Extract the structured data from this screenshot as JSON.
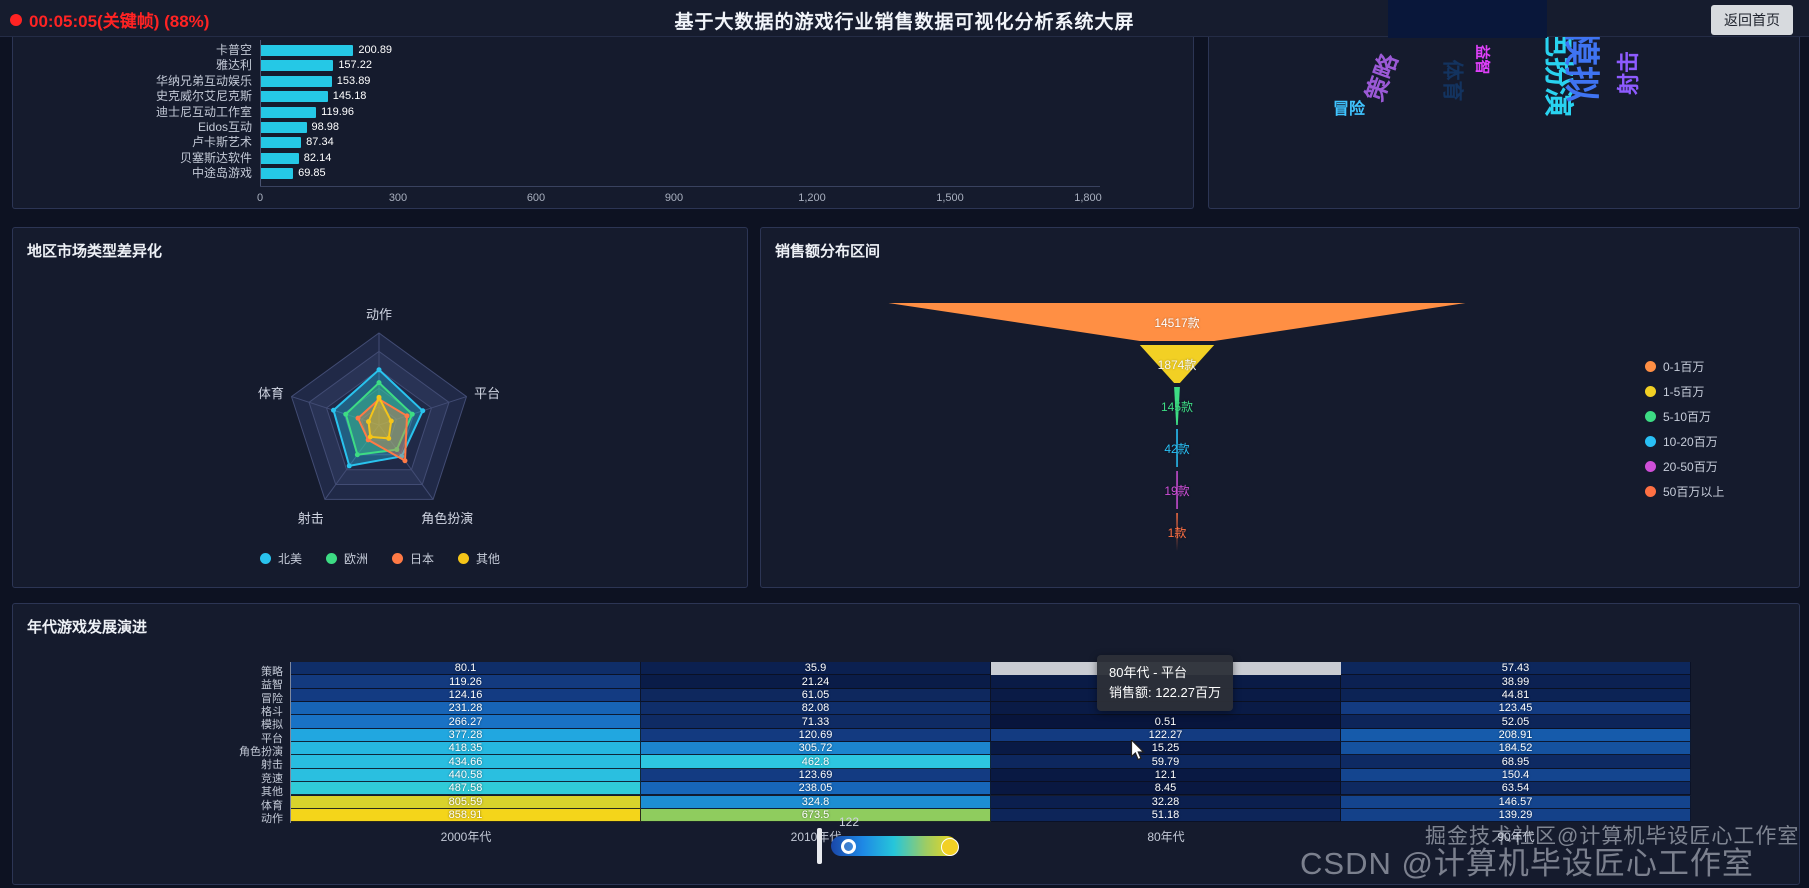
{
  "header": {
    "recording": "00:05:05(关键帧) (88%)",
    "title": "基于大数据的游戏行业销售数据可视化分析系统大屏",
    "home_button": "返回首页"
  },
  "chart_data": [
    {
      "type": "bar",
      "title": "",
      "orientation": "horizontal",
      "categories": [
        "卡普空",
        "雅达利",
        "华纳兄弟互动娱乐",
        "史克威尔艾尼克斯",
        "迪士尼互动工作室",
        "Eidos互动",
        "卢卡斯艺术",
        "贝塞斯达软件",
        "中途岛游戏"
      ],
      "values": [
        200.89,
        157.22,
        153.89,
        145.18,
        119.96,
        98.98,
        87.34,
        82.14,
        69.85
      ],
      "x_ticks": [
        "0",
        "300",
        "600",
        "900",
        "1,200",
        "1,500",
        "1,800"
      ],
      "x_max": 1800,
      "bar_color": "#25c8e6"
    },
    {
      "type": "wordcloud",
      "title": "",
      "words": [
        {
          "text": "策略",
          "color": "#9b59d6",
          "size": 24,
          "x": 150,
          "y": 30,
          "rotate": -70
        },
        {
          "text": "体育",
          "color": "#13335f",
          "size": 21,
          "x": 222,
          "y": 34,
          "rotate": 90
        },
        {
          "text": "益智",
          "color": "#e040fb",
          "size": 15,
          "x": 258,
          "y": 16,
          "rotate": 90
        },
        {
          "text": "角色扮演",
          "color": "#29d3f0",
          "size": 30,
          "x": 288,
          "y": 6,
          "rotate": 90
        },
        {
          "text": "模拟",
          "color": "#3f74f2",
          "size": 36,
          "x": 336,
          "y": 12,
          "rotate": 90
        },
        {
          "text": "射击",
          "color": "#8e5bff",
          "size": 22,
          "x": 398,
          "y": 26,
          "rotate": -90
        },
        {
          "text": "冒险",
          "color": "#40c4ff",
          "size": 16,
          "x": 124,
          "y": 66,
          "rotate": 0
        }
      ]
    },
    {
      "type": "radar",
      "title": "地区市场类型差异化",
      "indicators": [
        "动作",
        "平台",
        "角色扮演",
        "射击",
        "体育"
      ],
      "scale_max": 1,
      "series": [
        {
          "name": "北美",
          "color": "#29c3ee",
          "values": [
            0.6,
            0.5,
            0.42,
            0.55,
            0.52
          ]
        },
        {
          "name": "欧洲",
          "color": "#3ddc84",
          "values": [
            0.46,
            0.38,
            0.33,
            0.4,
            0.38
          ]
        },
        {
          "name": "日本",
          "color": "#ff7a45",
          "values": [
            0.28,
            0.32,
            0.48,
            0.2,
            0.24
          ]
        },
        {
          "name": "其他",
          "color": "#f5c518",
          "values": [
            0.3,
            0.14,
            0.18,
            0.16,
            0.12
          ]
        }
      ]
    },
    {
      "type": "funnel",
      "title": "销售额分布区间",
      "segments": [
        {
          "label": "14517款",
          "count": 14517,
          "color": "#ff8f44",
          "label_color": "#ffffff"
        },
        {
          "label": "1874款",
          "count": 1874,
          "color": "#f2d024",
          "label_color": "#f5f5f5"
        },
        {
          "label": "145款",
          "count": 145,
          "color": "#3ddc84",
          "label_color": "#3ddc84"
        },
        {
          "label": "42款",
          "count": 42,
          "color": "#29c0f5",
          "label_color": "#29c0f5"
        },
        {
          "label": "19款",
          "count": 19,
          "color": "#cf4fd8",
          "label_color": "#cf4fd8"
        },
        {
          "label": "1款",
          "count": 1,
          "color": "#ff7043",
          "label_color": "#ff7043"
        }
      ],
      "legend": [
        {
          "label": "0-1百万",
          "color": "#ff8f44"
        },
        {
          "label": "1-5百万",
          "color": "#f2d024"
        },
        {
          "label": "5-10百万",
          "color": "#3ddc84"
        },
        {
          "label": "10-20百万",
          "color": "#29c0f5"
        },
        {
          "label": "20-50百万",
          "color": "#cf4fd8"
        },
        {
          "label": "50百万以上",
          "color": "#ff7043"
        }
      ]
    },
    {
      "type": "heatmap",
      "title": "年代游戏发展演进",
      "rows": [
        "策略",
        "益智",
        "冒险",
        "格斗",
        "模拟",
        "平台",
        "角色扮演",
        "射击",
        "竞速",
        "其他",
        "体育",
        "动作"
      ],
      "columns": [
        "2000年代",
        "2010年代",
        "80年代",
        "90年代"
      ],
      "values": [
        [
          80.1,
          35.9,
          null,
          57.43
        ],
        [
          119.26,
          21.24,
          null,
          38.99
        ],
        [
          124.16,
          61.05,
          null,
          44.81
        ],
        [
          231.28,
          82.08,
          null,
          123.45
        ],
        [
          266.27,
          71.33,
          0.51,
          52.05
        ],
        [
          377.28,
          120.69,
          122.27,
          208.91
        ],
        [
          418.35,
          305.72,
          15.25,
          184.52
        ],
        [
          434.66,
          462.8,
          59.79,
          68.95
        ],
        [
          440.58,
          123.69,
          12.1,
          150.4
        ],
        [
          487.58,
          238.05,
          8.45,
          63.54
        ],
        [
          805.59,
          324.8,
          32.28,
          146.57
        ],
        [
          858.91,
          673.5,
          51.18,
          139.29
        ]
      ],
      "value_max": 860,
      "color_stops": [
        [
          0.0,
          "#08153c"
        ],
        [
          0.14,
          "#133a80"
        ],
        [
          0.3,
          "#186ec3"
        ],
        [
          0.44,
          "#21a8e0"
        ],
        [
          0.55,
          "#2ecbe0"
        ],
        [
          0.66,
          "#3dcdaa"
        ],
        [
          0.8,
          "#9acc54"
        ],
        [
          1.0,
          "#f5d51a"
        ]
      ],
      "highlight_cell": {
        "row": 0,
        "col": 2
      }
    }
  ],
  "tooltip": {
    "line1": "80年代 - 平台",
    "line2": "销售额: 122.27百万"
  },
  "visual_map": {
    "value": "122",
    "gradient": [
      "#1a47a8",
      "#1e88e5",
      "#26c6da",
      "#9ccc65",
      "#f5d718"
    ]
  },
  "watermarks": {
    "small": "掘金技术社区@计算机毕设匠心工作室",
    "large": "CSDN @计算机毕设匠心工作室"
  }
}
